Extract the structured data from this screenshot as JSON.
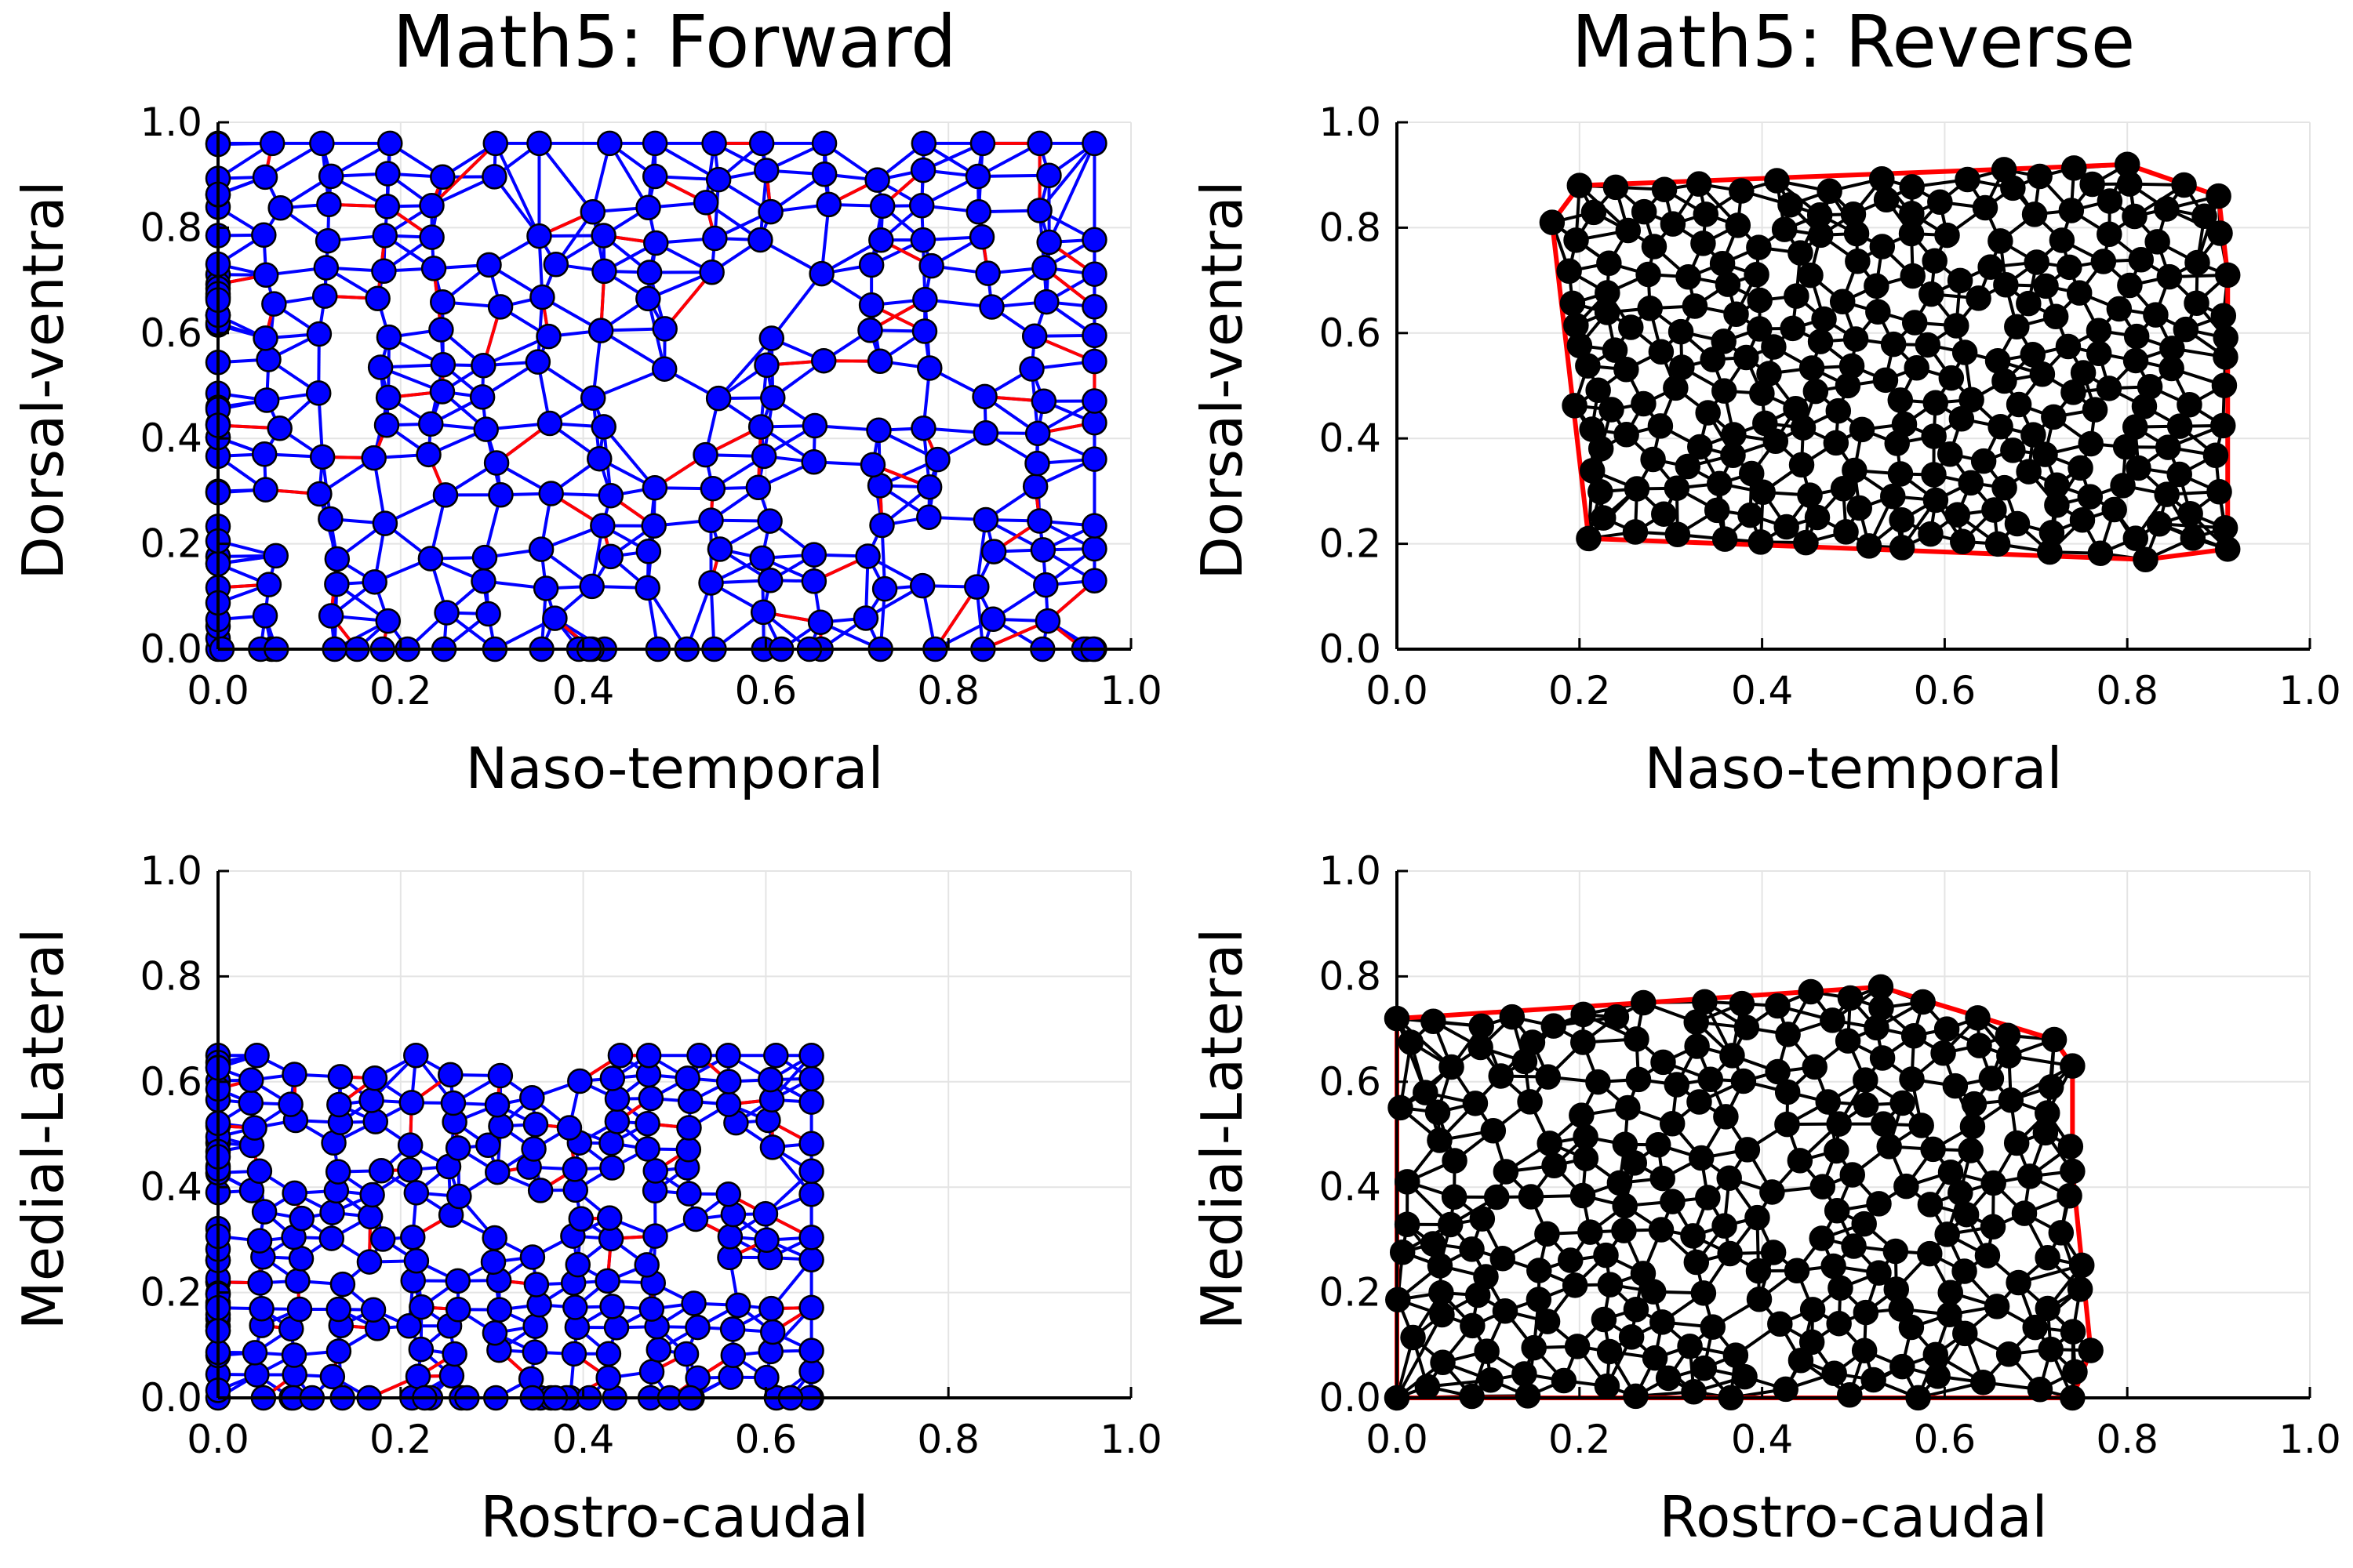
{
  "chart_data": [
    {
      "type": "scatter",
      "title": "Math5: Forward",
      "xlabel": "Naso-temporal",
      "ylabel": "Dorsal-ventral",
      "xlim": [
        0,
        1
      ],
      "ylim": [
        0,
        1
      ],
      "xticks": [
        "0.0",
        "0.2",
        "0.4",
        "0.6",
        "0.8",
        "1.0"
      ],
      "yticks": [
        "0.0",
        "0.2",
        "0.4",
        "0.6",
        "0.8",
        "1.0"
      ],
      "grid": true,
      "node_color": "#0000ff",
      "edge_color": "#0000ff",
      "boundary_color": "#ff0000",
      "pattern": "grid",
      "x_range": [
        0.0,
        0.96
      ],
      "y_range": [
        0.0,
        0.96
      ],
      "n_points": 260
    },
    {
      "type": "scatter",
      "title": "Math5: Reverse",
      "xlabel": "Naso-temporal",
      "ylabel": "Dorsal-ventral",
      "xlim": [
        0,
        1
      ],
      "ylim": [
        0,
        1
      ],
      "xticks": [
        "0.0",
        "0.2",
        "0.4",
        "0.6",
        "0.8",
        "1.0"
      ],
      "yticks": [
        "0.0",
        "0.2",
        "0.4",
        "0.6",
        "0.8",
        "1.0"
      ],
      "grid": true,
      "node_color": "#000000",
      "edge_color": "#000000",
      "boundary_color": "#ff0000",
      "pattern": "random",
      "hull": [
        [
          0.17,
          0.81
        ],
        [
          0.2,
          0.88
        ],
        [
          0.8,
          0.92
        ],
        [
          0.9,
          0.86
        ],
        [
          0.91,
          0.71
        ],
        [
          0.91,
          0.19
        ],
        [
          0.82,
          0.17
        ],
        [
          0.21,
          0.21
        ]
      ],
      "n_points": 260
    },
    {
      "type": "scatter",
      "title": "",
      "xlabel": "Rostro-caudal",
      "ylabel": "Medial-Lateral",
      "xlim": [
        0,
        1
      ],
      "ylim": [
        0,
        1
      ],
      "xticks": [
        "0.0",
        "0.2",
        "0.4",
        "0.6",
        "0.8",
        "1.0"
      ],
      "yticks": [
        "0.0",
        "0.2",
        "0.4",
        "0.6",
        "0.8",
        "1.0"
      ],
      "grid": true,
      "node_color": "#0000ff",
      "edge_color": "#0000ff",
      "boundary_color": "#ff0000",
      "pattern": "grid",
      "x_range": [
        0.0,
        0.65
      ],
      "y_range": [
        0.0,
        0.65
      ],
      "n_points": 220
    },
    {
      "type": "scatter",
      "title": "",
      "xlabel": "Rostro-caudal",
      "ylabel": "Medial-Lateral",
      "xlim": [
        0,
        1
      ],
      "ylim": [
        0,
        1
      ],
      "xticks": [
        "0.0",
        "0.2",
        "0.4",
        "0.6",
        "0.8",
        "1.0"
      ],
      "yticks": [
        "0.0",
        "0.2",
        "0.4",
        "0.6",
        "0.8",
        "1.0"
      ],
      "grid": true,
      "node_color": "#000000",
      "edge_color": "#000000",
      "boundary_color": "#ff0000",
      "pattern": "random",
      "hull": [
        [
          0.0,
          0.72
        ],
        [
          0.27,
          0.75
        ],
        [
          0.53,
          0.78
        ],
        [
          0.72,
          0.68
        ],
        [
          0.74,
          0.63
        ],
        [
          0.74,
          0.43
        ],
        [
          0.76,
          0.09
        ],
        [
          0.74,
          0.0
        ],
        [
          0.0,
          0.0
        ]
      ],
      "n_points": 240
    }
  ]
}
